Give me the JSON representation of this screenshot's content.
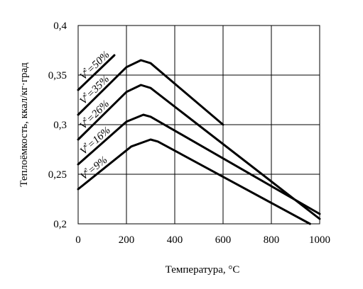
{
  "chart_data": {
    "type": "line",
    "title": "",
    "xlabel": "Температура, °C",
    "ylabel": "Теплоёмкость, ккал/кг·град",
    "xlim": [
      0,
      1000
    ],
    "ylim": [
      0.2,
      0.4
    ],
    "x_ticks": [
      "0",
      "200",
      "400",
      "600",
      "800",
      "1000"
    ],
    "y_ticks": [
      "0,2",
      "0,25",
      "0,3",
      "0,35",
      "0,4"
    ],
    "grid": true,
    "legend": "none",
    "series": [
      {
        "label_prefix": "V",
        "label_sub": "г",
        "label_suffix": "=50%",
        "x": [
          0,
          150
        ],
        "y": [
          0.335,
          0.37
        ]
      },
      {
        "label_prefix": "V",
        "label_sub": "г",
        "label_suffix": "=35%",
        "x": [
          0,
          200,
          260,
          300,
          600
        ],
        "y": [
          0.31,
          0.358,
          0.365,
          0.362,
          0.3
        ]
      },
      {
        "label_prefix": "V",
        "label_sub": "г",
        "label_suffix": "=26%",
        "x": [
          0,
          200,
          260,
          300,
          1000
        ],
        "y": [
          0.285,
          0.333,
          0.34,
          0.337,
          0.205
        ]
      },
      {
        "label_prefix": "V",
        "label_sub": "г",
        "label_suffix": "=16%",
        "x": [
          0,
          200,
          270,
          300,
          1000
        ],
        "y": [
          0.26,
          0.303,
          0.31,
          0.308,
          0.21
        ]
      },
      {
        "label_prefix": "V",
        "label_sub": "г",
        "label_suffix": "=9%",
        "x": [
          0,
          220,
          300,
          330,
          960
        ],
        "y": [
          0.235,
          0.278,
          0.285,
          0.283,
          0.2
        ]
      }
    ]
  }
}
